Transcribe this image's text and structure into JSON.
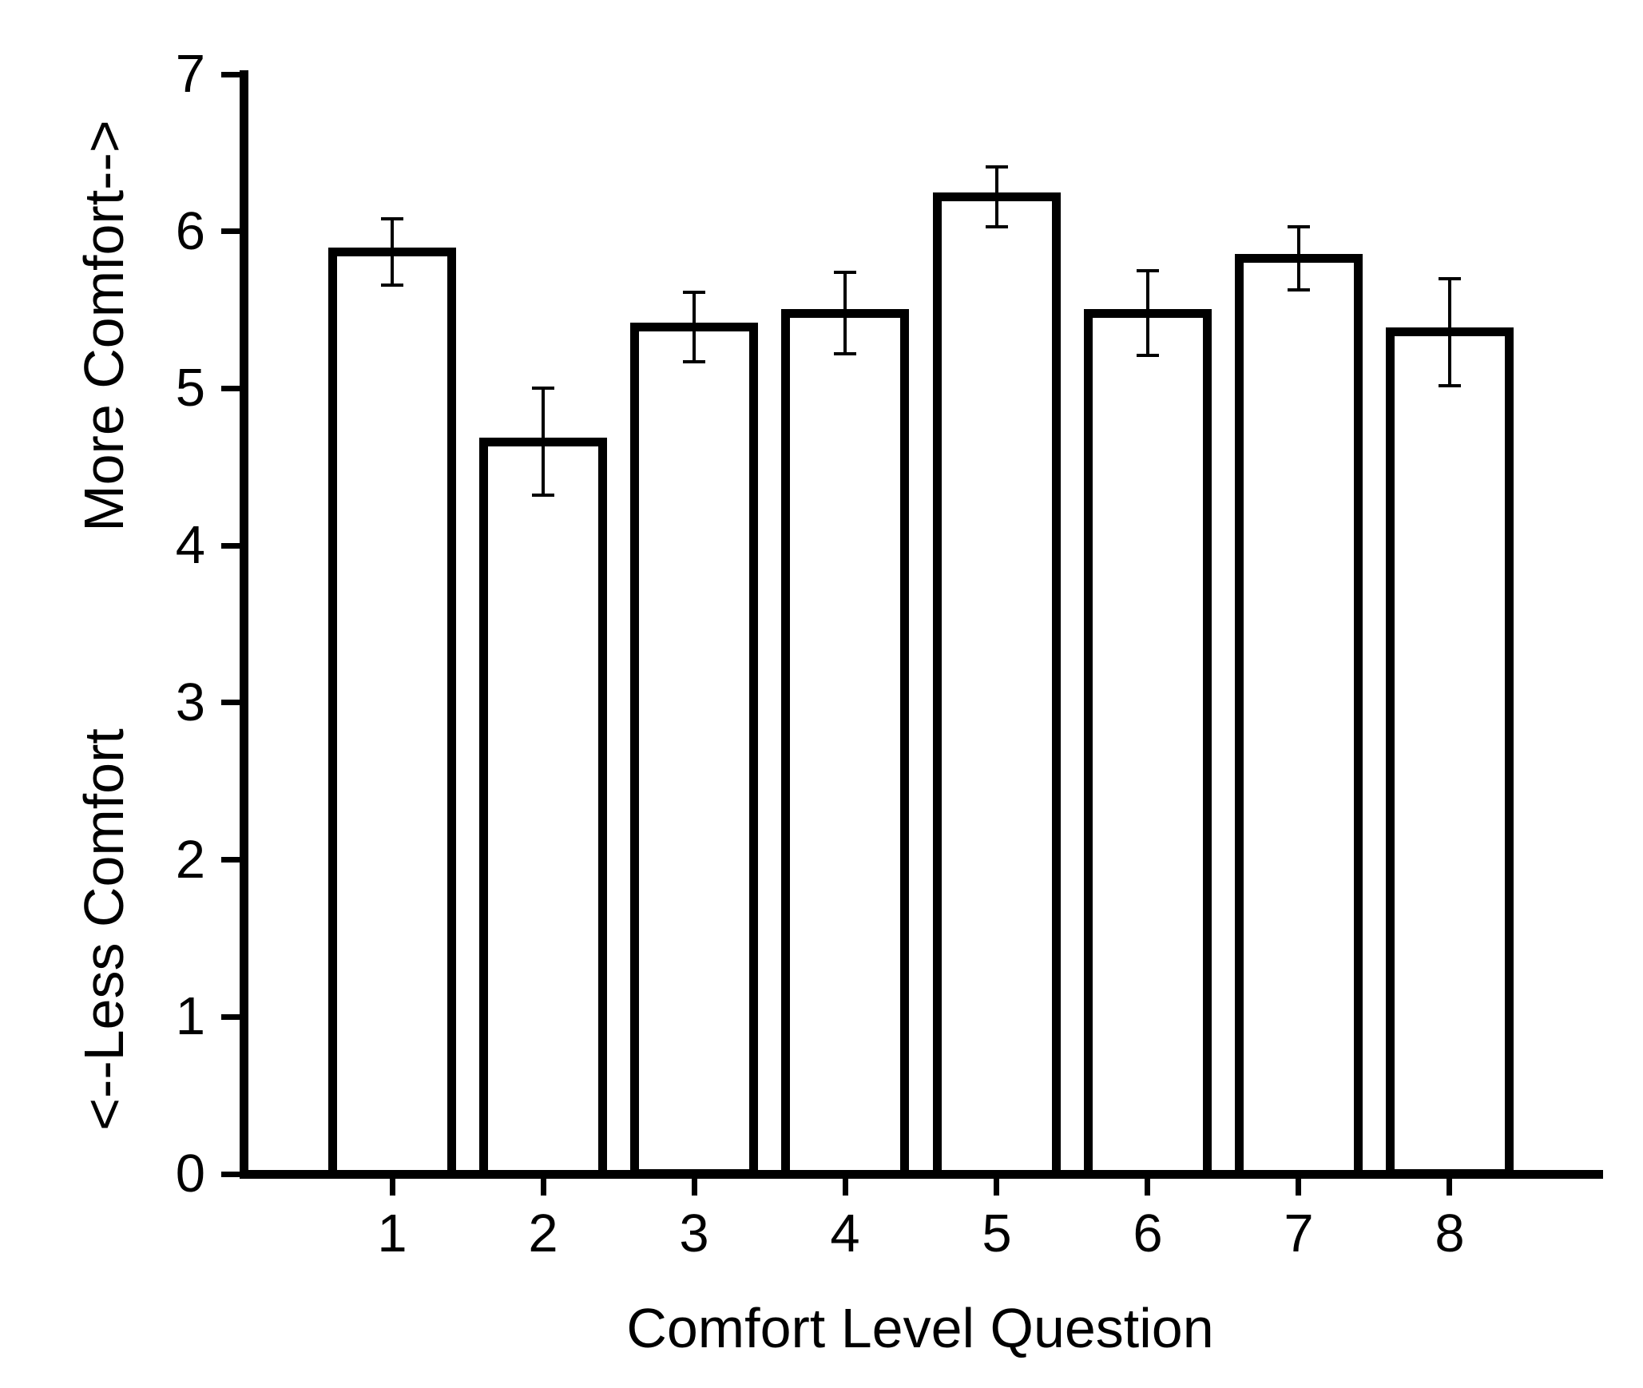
{
  "chart_data": {
    "type": "bar",
    "title": "",
    "xlabel": "Comfort Level Question",
    "ylabel_top": "More Comfort-->",
    "ylabel_bottom": "<--Less Comfort",
    "categories": [
      "1",
      "2",
      "3",
      "4",
      "5",
      "6",
      "7",
      "8"
    ],
    "values": [
      5.87,
      4.66,
      5.39,
      5.48,
      6.22,
      5.48,
      5.83,
      5.36
    ],
    "error_bars": [
      0.21,
      0.34,
      0.22,
      0.26,
      0.19,
      0.27,
      0.2,
      0.34
    ],
    "ylim": [
      0,
      7
    ],
    "yticks": [
      "0",
      "1",
      "2",
      "3",
      "4",
      "5",
      "6",
      "7"
    ],
    "grid": false,
    "legend": null,
    "bar_fill": "#ffffff",
    "line_color": "#000000",
    "background": "#ffffff"
  }
}
